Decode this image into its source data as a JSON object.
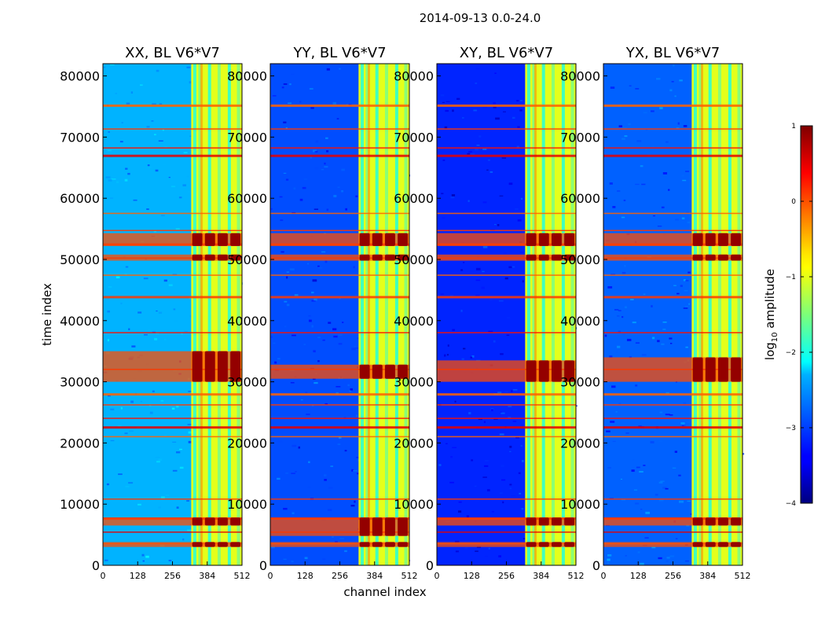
{
  "chart_data": {
    "type": "heatmap",
    "suptitle": "2014-09-13 0.0-24.0",
    "xlabel": "channel index",
    "ylabel": "time index",
    "xlim": [
      0,
      512
    ],
    "ylim": [
      0,
      82000
    ],
    "x_ticks": [
      0,
      128,
      256,
      384,
      512
    ],
    "y_ticks": [
      0,
      10000,
      20000,
      30000,
      40000,
      50000,
      60000,
      70000,
      80000
    ],
    "panels": [
      {
        "title": "XX, BL V6*V7",
        "level": 0.3,
        "band_start": 325,
        "band_end": 512,
        "strong_rows": [
          [
            52200,
            54300
          ],
          [
            49800,
            50800
          ],
          [
            30000,
            35000
          ],
          [
            6500,
            7800
          ],
          [
            3000,
            3800
          ]
        ]
      },
      {
        "title": "YY, BL V6*V7",
        "level": 0.2,
        "band_start": 325,
        "band_end": 512,
        "strong_rows": [
          [
            52200,
            54300
          ],
          [
            49800,
            50800
          ],
          [
            30500,
            32800
          ],
          [
            4800,
            7800
          ],
          [
            3000,
            3800
          ]
        ]
      },
      {
        "title": "XY, BL V6*V7",
        "level": 0.16,
        "band_start": 325,
        "band_end": 512,
        "strong_rows": [
          [
            52200,
            54300
          ],
          [
            49800,
            50800
          ],
          [
            30000,
            33500
          ],
          [
            6500,
            7800
          ],
          [
            3000,
            3800
          ]
        ]
      },
      {
        "title": "YX, BL V6*V7",
        "level": 0.22,
        "band_start": 325,
        "band_end": 512,
        "strong_rows": [
          [
            52200,
            54300
          ],
          [
            49800,
            50800
          ],
          [
            30000,
            34000
          ],
          [
            6500,
            7800
          ],
          [
            3000,
            3800
          ]
        ]
      }
    ],
    "horizontal_lines": [
      75200,
      71300,
      68200,
      67000,
      57500,
      54700,
      52500,
      50200,
      47400,
      43900,
      38000,
      32000,
      28000,
      26200,
      24000,
      22600,
      21000,
      10800,
      7700,
      5400,
      3500
    ],
    "colorbar": {
      "label": "log10 amplitude",
      "label_base": "log",
      "label_sub": "10",
      "label_rest": " amplitude",
      "range": [
        -4,
        1
      ],
      "ticks": [
        1,
        0,
        -1,
        -2,
        -3,
        -4
      ],
      "tick_labels": [
        "1",
        "0",
        "−1",
        "−2",
        "−3",
        "−4"
      ],
      "colormap": "jet"
    }
  }
}
